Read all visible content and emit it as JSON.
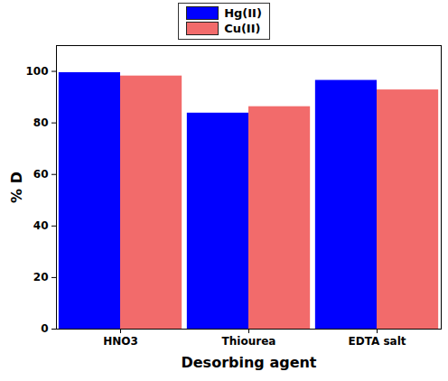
{
  "chart_data": {
    "type": "bar",
    "categories": [
      "HNO3",
      "Thiourea",
      "EDTA salt"
    ],
    "series": [
      {
        "name": "Hg(II)",
        "color": "#0000ff",
        "values": [
          99.5,
          83.8,
          96.5
        ]
      },
      {
        "name": "Cu(II)",
        "color": "#f26b6b",
        "values": [
          98.2,
          86.3,
          92.8
        ]
      }
    ],
    "x_label": "Desorbing agent",
    "y_label": "% D",
    "ylim": [
      0,
      110
    ],
    "yticks": [
      0,
      20,
      40,
      60,
      80,
      100
    ],
    "legend": "top",
    "grid": false
  }
}
